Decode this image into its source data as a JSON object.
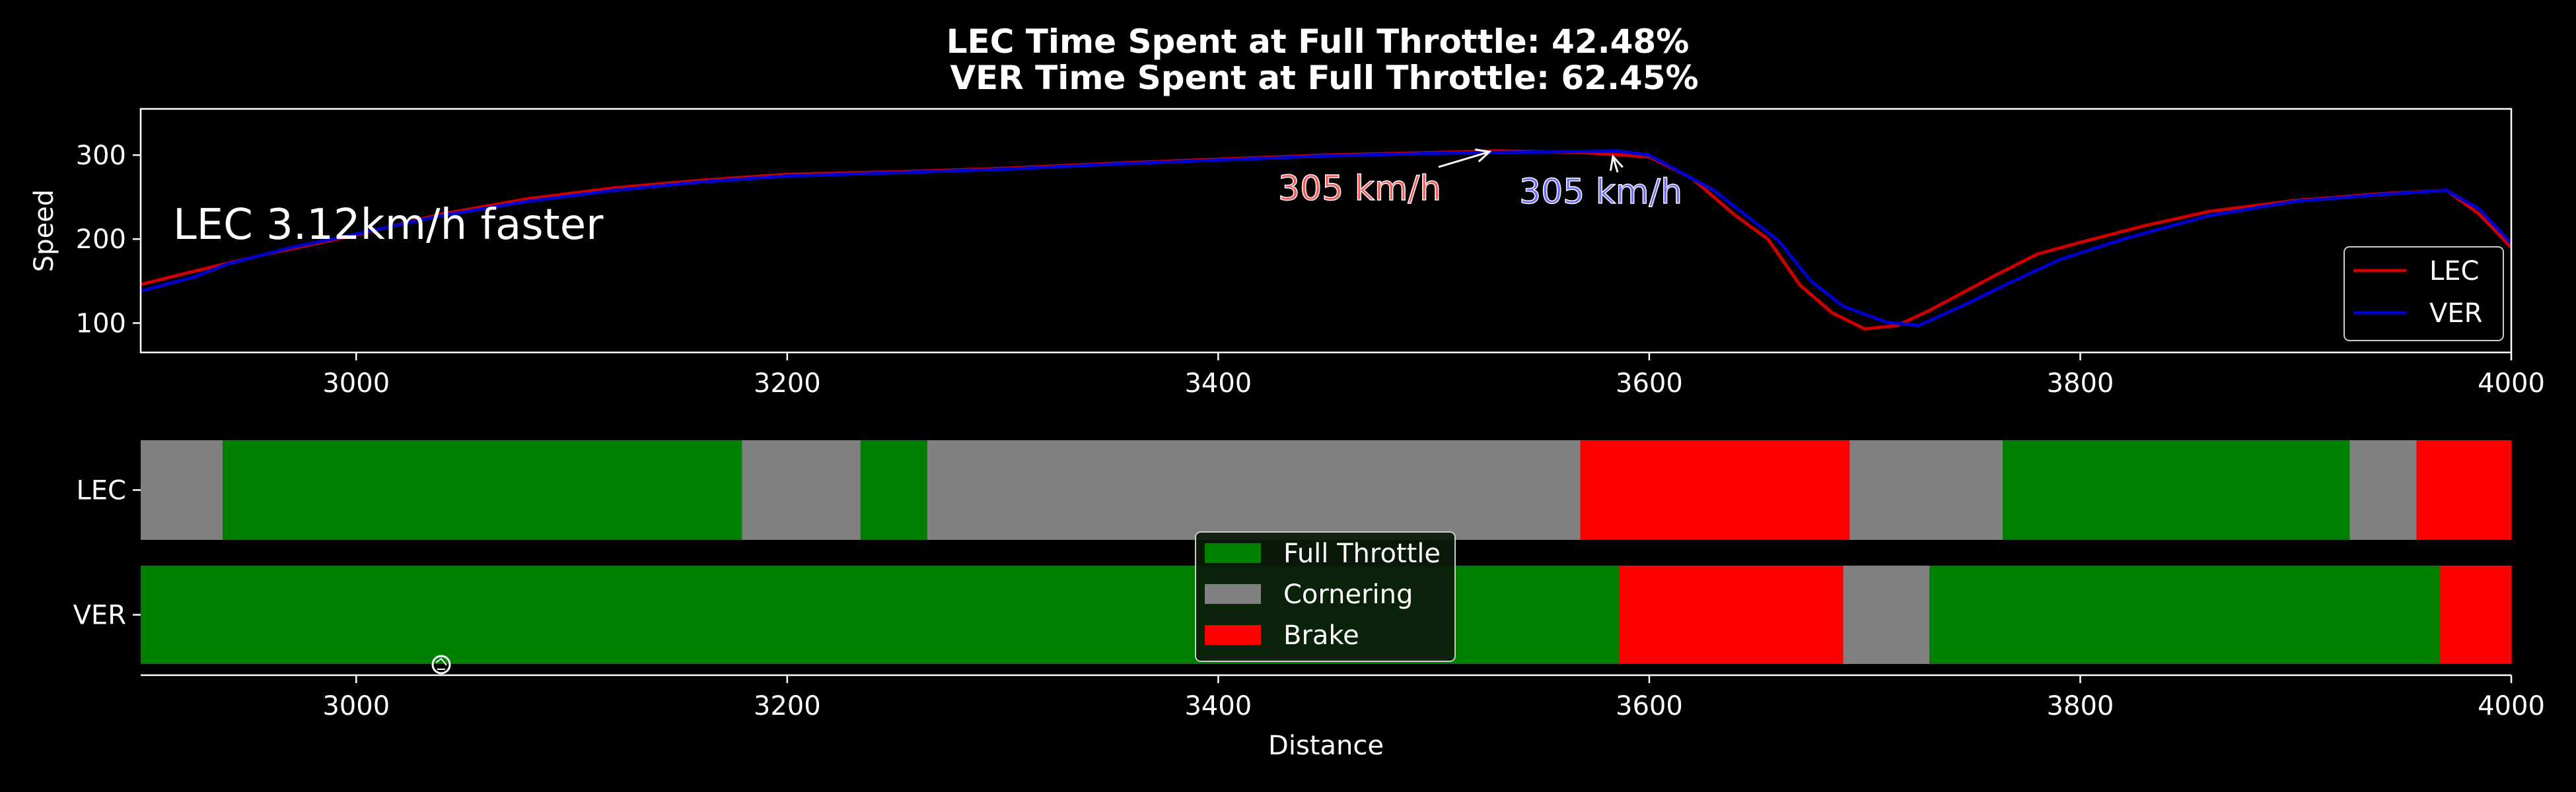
{
  "title": {
    "line1": "LEC Time Spent at Full Throttle:  42.48%",
    "line2": "VER Time Spent at Full Throttle:  62.45%"
  },
  "chart_data": [
    {
      "type": "line",
      "xlabel": "",
      "ylabel": "Speed",
      "xlim": [
        2900,
        4000
      ],
      "ylim": [
        65,
        355
      ],
      "x_ticks": [
        3000,
        3200,
        3400,
        3600,
        3800,
        4000
      ],
      "y_ticks": [
        100,
        200,
        300
      ],
      "legend": {
        "placement": "lower-right"
      },
      "annotation_text": "LEC 3.12km/h faster",
      "series": [
        {
          "name": "LEC",
          "color": "#cc0000",
          "points": [
            [
              2900,
              146
            ],
            [
              2930,
              165
            ],
            [
              2960,
              183
            ],
            [
              3000,
              205
            ],
            [
              3040,
              230
            ],
            [
              3080,
              248
            ],
            [
              3120,
              261
            ],
            [
              3160,
              270
            ],
            [
              3200,
              277
            ],
            [
              3250,
              280
            ],
            [
              3300,
              284
            ],
            [
              3350,
              290
            ],
            [
              3400,
              295
            ],
            [
              3450,
              300
            ],
            [
              3500,
              303
            ],
            [
              3530,
              305
            ],
            [
              3570,
              303
            ],
            [
              3600,
              298
            ],
            [
              3620,
              272
            ],
            [
              3640,
              228
            ],
            [
              3655,
              200
            ],
            [
              3670,
              145
            ],
            [
              3685,
              112
            ],
            [
              3700,
              93
            ],
            [
              3715,
              97
            ],
            [
              3730,
              115
            ],
            [
              3760,
              156
            ],
            [
              3780,
              182
            ],
            [
              3800,
              196
            ],
            [
              3830,
              216
            ],
            [
              3860,
              233
            ],
            [
              3900,
              246
            ],
            [
              3940,
              254
            ],
            [
              3970,
              258
            ],
            [
              3985,
              230
            ],
            [
              4000,
              190
            ]
          ]
        },
        {
          "name": "VER",
          "color": "#0000cc",
          "points": [
            [
              2900,
              138
            ],
            [
              2925,
              155
            ],
            [
              2940,
              170
            ],
            [
              2970,
              190
            ],
            [
              3000,
              206
            ],
            [
              3040,
              228
            ],
            [
              3080,
              245
            ],
            [
              3120,
              258
            ],
            [
              3160,
              268
            ],
            [
              3200,
              275
            ],
            [
              3250,
              279
            ],
            [
              3300,
              283
            ],
            [
              3350,
              289
            ],
            [
              3400,
              294
            ],
            [
              3450,
              299
            ],
            [
              3500,
              302
            ],
            [
              3560,
              304
            ],
            [
              3585,
              305
            ],
            [
              3600,
              300
            ],
            [
              3630,
              258
            ],
            [
              3660,
              198
            ],
            [
              3675,
              150
            ],
            [
              3690,
              120
            ],
            [
              3710,
              101
            ],
            [
              3725,
              97
            ],
            [
              3745,
              120
            ],
            [
              3765,
              145
            ],
            [
              3790,
              175
            ],
            [
              3820,
              200
            ],
            [
              3860,
              228
            ],
            [
              3900,
              245
            ],
            [
              3940,
              253
            ],
            [
              3970,
              258
            ],
            [
              3985,
              236
            ],
            [
              4000,
              195
            ]
          ]
        }
      ],
      "callouts": [
        {
          "text": "305 km/h",
          "color": "#ff5555",
          "x": 3530,
          "y": 305
        },
        {
          "text": "305 km/h",
          "color": "#6b6bff",
          "x": 3585,
          "y": 305
        }
      ]
    },
    {
      "type": "bar",
      "orientation": "horizontal-stacked",
      "xlabel": "Distance",
      "ylabel": "",
      "xlim": [
        2900,
        4000
      ],
      "x_ticks": [
        3000,
        3200,
        3400,
        3600,
        3800,
        4000
      ],
      "categories": [
        "LEC",
        "VER"
      ],
      "legend": {
        "placement": "center",
        "entries": [
          {
            "name": "Full Throttle",
            "color": "#008000"
          },
          {
            "name": "Cornering",
            "color": "#808080"
          },
          {
            "name": "Brake",
            "color": "#ff0000"
          }
        ]
      },
      "segments": {
        "LEC": [
          {
            "start": 2900,
            "end": 2938,
            "state": "Cornering"
          },
          {
            "start": 2938,
            "end": 3179,
            "state": "Full Throttle"
          },
          {
            "start": 3179,
            "end": 3234,
            "state": "Cornering"
          },
          {
            "start": 3234,
            "end": 3265,
            "state": "Full Throttle"
          },
          {
            "start": 3265,
            "end": 3568,
            "state": "Cornering"
          },
          {
            "start": 3568,
            "end": 3693,
            "state": "Brake"
          },
          {
            "start": 3693,
            "end": 3764,
            "state": "Cornering"
          },
          {
            "start": 3764,
            "end": 3925,
            "state": "Full Throttle"
          },
          {
            "start": 3925,
            "end": 3956,
            "state": "Cornering"
          },
          {
            "start": 3956,
            "end": 4000,
            "state": "Brake"
          }
        ],
        "VER": [
          {
            "start": 2900,
            "end": 3586,
            "state": "Full Throttle"
          },
          {
            "start": 3586,
            "end": 3690,
            "state": "Brake"
          },
          {
            "start": 3690,
            "end": 3730,
            "state": "Cornering"
          },
          {
            "start": 3730,
            "end": 3967,
            "state": "Full Throttle"
          },
          {
            "start": 3967,
            "end": 4000,
            "state": "Brake"
          }
        ]
      }
    }
  ]
}
